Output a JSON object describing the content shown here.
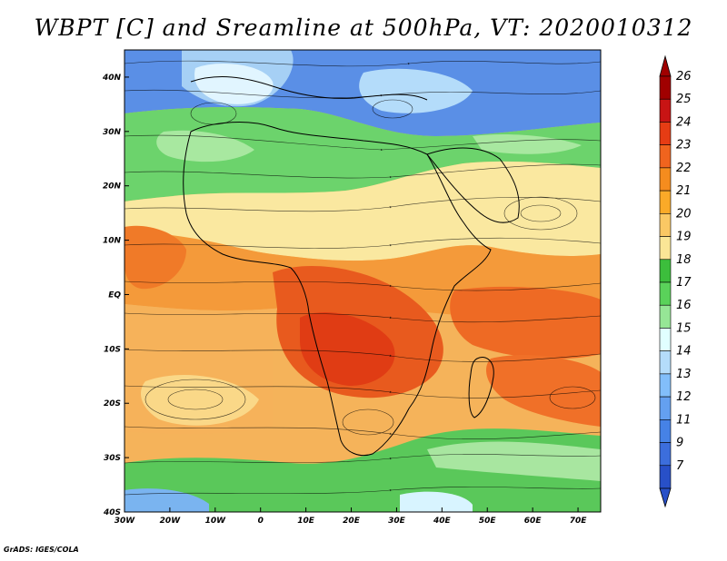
{
  "title": "WBPT [C] and Sreamline at 500hPa, VT: 2020010312",
  "credit": "GrADS: IGES/COLA",
  "map": {
    "lon_range": [
      -30,
      75
    ],
    "lat_range": [
      -40,
      45
    ],
    "lon_ticks": [
      {
        "value": -30,
        "label": "30W"
      },
      {
        "value": -20,
        "label": "20W"
      },
      {
        "value": -10,
        "label": "10W"
      },
      {
        "value": 0,
        "label": "0"
      },
      {
        "value": 10,
        "label": "10E"
      },
      {
        "value": 20,
        "label": "20E"
      },
      {
        "value": 30,
        "label": "30E"
      },
      {
        "value": 40,
        "label": "40E"
      },
      {
        "value": 50,
        "label": "50E"
      },
      {
        "value": 60,
        "label": "60E"
      },
      {
        "value": 70,
        "label": "70E"
      }
    ],
    "lat_ticks": [
      {
        "value": 40,
        "label": "40N"
      },
      {
        "value": 30,
        "label": "30N"
      },
      {
        "value": 20,
        "label": "20N"
      },
      {
        "value": 10,
        "label": "10N"
      },
      {
        "value": 0,
        "label": "EQ"
      },
      {
        "value": -10,
        "label": "10S"
      },
      {
        "value": -20,
        "label": "20S"
      },
      {
        "value": -30,
        "label": "30S"
      },
      {
        "value": -40,
        "label": "40S"
      }
    ]
  },
  "colorbar": {
    "levels": [
      {
        "label": "26",
        "color": "#a00000"
      },
      {
        "label": "25",
        "color": "#c81414"
      },
      {
        "label": "24",
        "color": "#e63c14"
      },
      {
        "label": "23",
        "color": "#f0641e"
      },
      {
        "label": "22",
        "color": "#f58c1e"
      },
      {
        "label": "21",
        "color": "#faaa28"
      },
      {
        "label": "20",
        "color": "#fac864"
      },
      {
        "label": "19",
        "color": "#fae696"
      },
      {
        "label": "18",
        "color": "#3cbe3c"
      },
      {
        "label": "17",
        "color": "#5ad25a"
      },
      {
        "label": "16",
        "color": "#96e696"
      },
      {
        "label": "15",
        "color": "#e1ffff"
      },
      {
        "label": "14",
        "color": "#b4dcfa"
      },
      {
        "label": "13",
        "color": "#82befa"
      },
      {
        "label": "12",
        "color": "#64a0f0"
      },
      {
        "label": "11",
        "color": "#4682e6"
      },
      {
        "label": "9",
        "color": "#3c6edc"
      },
      {
        "label": "7",
        "color": "#2850c8"
      }
    ],
    "top_color": "#a00000",
    "bottom_color": "#2850c8"
  }
}
